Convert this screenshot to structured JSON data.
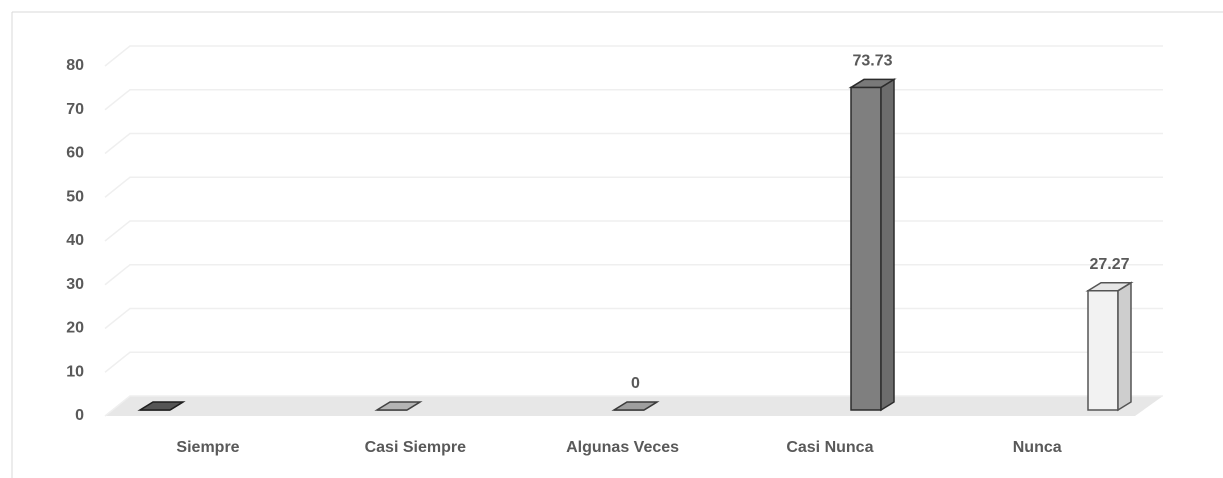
{
  "chart_data": {
    "type": "bar3d",
    "categories": [
      "Siempre",
      "Casi Siempre",
      "Algunas Veces",
      "Casi Nunca",
      "Nunca"
    ],
    "values": [
      0,
      0,
      0,
      73.73,
      27.27
    ],
    "value_labels": [
      null,
      null,
      "0",
      "73.73",
      "27.27"
    ],
    "colors": [
      "#595959",
      "#bfbfbf",
      "#a6a6a6",
      "#7f7f7f",
      "#f2f2f2"
    ],
    "ylim": [
      0,
      80
    ],
    "yticks": [
      0,
      10,
      20,
      30,
      40,
      50,
      60,
      70,
      80
    ],
    "grid": true
  }
}
